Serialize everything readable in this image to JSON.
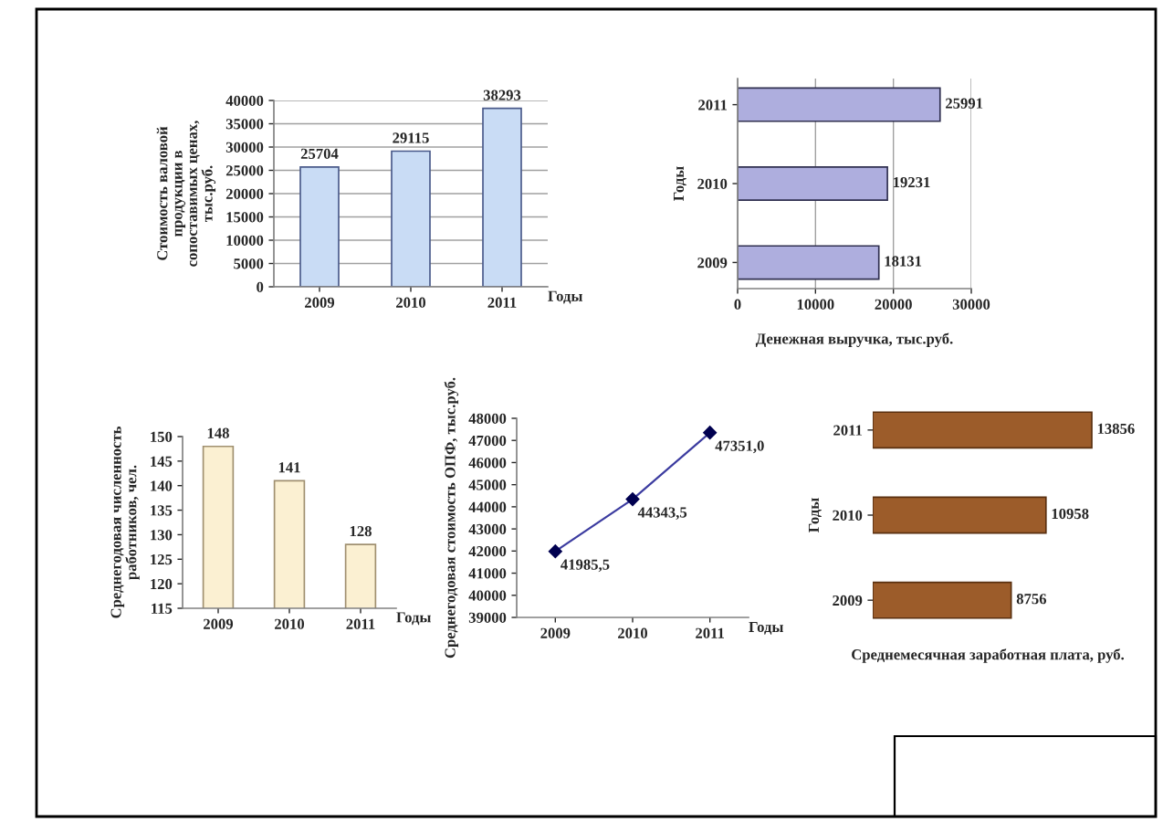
{
  "chart_data": [
    {
      "type": "bar",
      "categories": [
        "2009",
        "2010",
        "2011"
      ],
      "values": [
        25704,
        29115,
        38293
      ],
      "color": "#c9dcf5",
      "xlabel": "Годы",
      "ylabel": "Стоимость валовой\nпродукции в\nсопоставимых ценах,\nтыс.руб.",
      "ylim": [
        0,
        40000
      ],
      "yticks": [
        0,
        5000,
        10000,
        15000,
        20000,
        25000,
        30000,
        35000,
        40000
      ],
      "grid": "y",
      "data_labels": true
    },
    {
      "type": "bar",
      "orientation": "horizontal",
      "categories": [
        "2011",
        "2010",
        "2009"
      ],
      "values": [
        25991,
        19231,
        18131
      ],
      "color": "#aeaede",
      "xlabel": "Денежная выручка, тыс.руб.",
      "ylabel": "Годы",
      "xlim": [
        0,
        30000
      ],
      "xticks": [
        0,
        10000,
        20000,
        30000
      ],
      "grid": "x",
      "data_labels": true
    },
    {
      "type": "bar",
      "categories": [
        "2009",
        "2010",
        "2011"
      ],
      "values": [
        148,
        141,
        128
      ],
      "color": "#fbf0d2",
      "xlabel": "Годы",
      "ylabel": "Среднегодовая численность\nработников, чел.",
      "ylim": [
        115,
        150
      ],
      "yticks": [
        115,
        120,
        125,
        130,
        135,
        140,
        145,
        150
      ],
      "data_labels": true
    },
    {
      "type": "line",
      "categories": [
        "2009",
        "2010",
        "2011"
      ],
      "values": [
        41985.5,
        44343.5,
        47351.0
      ],
      "color": "#3c3ca0",
      "value_labels": [
        "41985,5",
        "44343,5",
        "47351,0"
      ],
      "marker": "diamond",
      "xlabel": "Годы",
      "ylabel": "Среднегодовая стоимость ОПФ, тыс.руб.",
      "ylim": [
        39000,
        48000
      ],
      "yticks": [
        39000,
        40000,
        41000,
        42000,
        43000,
        44000,
        45000,
        46000,
        47000,
        48000
      ]
    },
    {
      "type": "bar",
      "orientation": "horizontal",
      "categories": [
        "2011",
        "2010",
        "2009"
      ],
      "values": [
        13856,
        10958,
        8756
      ],
      "color": "#9c5c2a",
      "xlabel": "Среднемесячная заработная плата, руб.",
      "ylabel": "Годы",
      "tick_labels": "y",
      "data_labels": true
    }
  ]
}
